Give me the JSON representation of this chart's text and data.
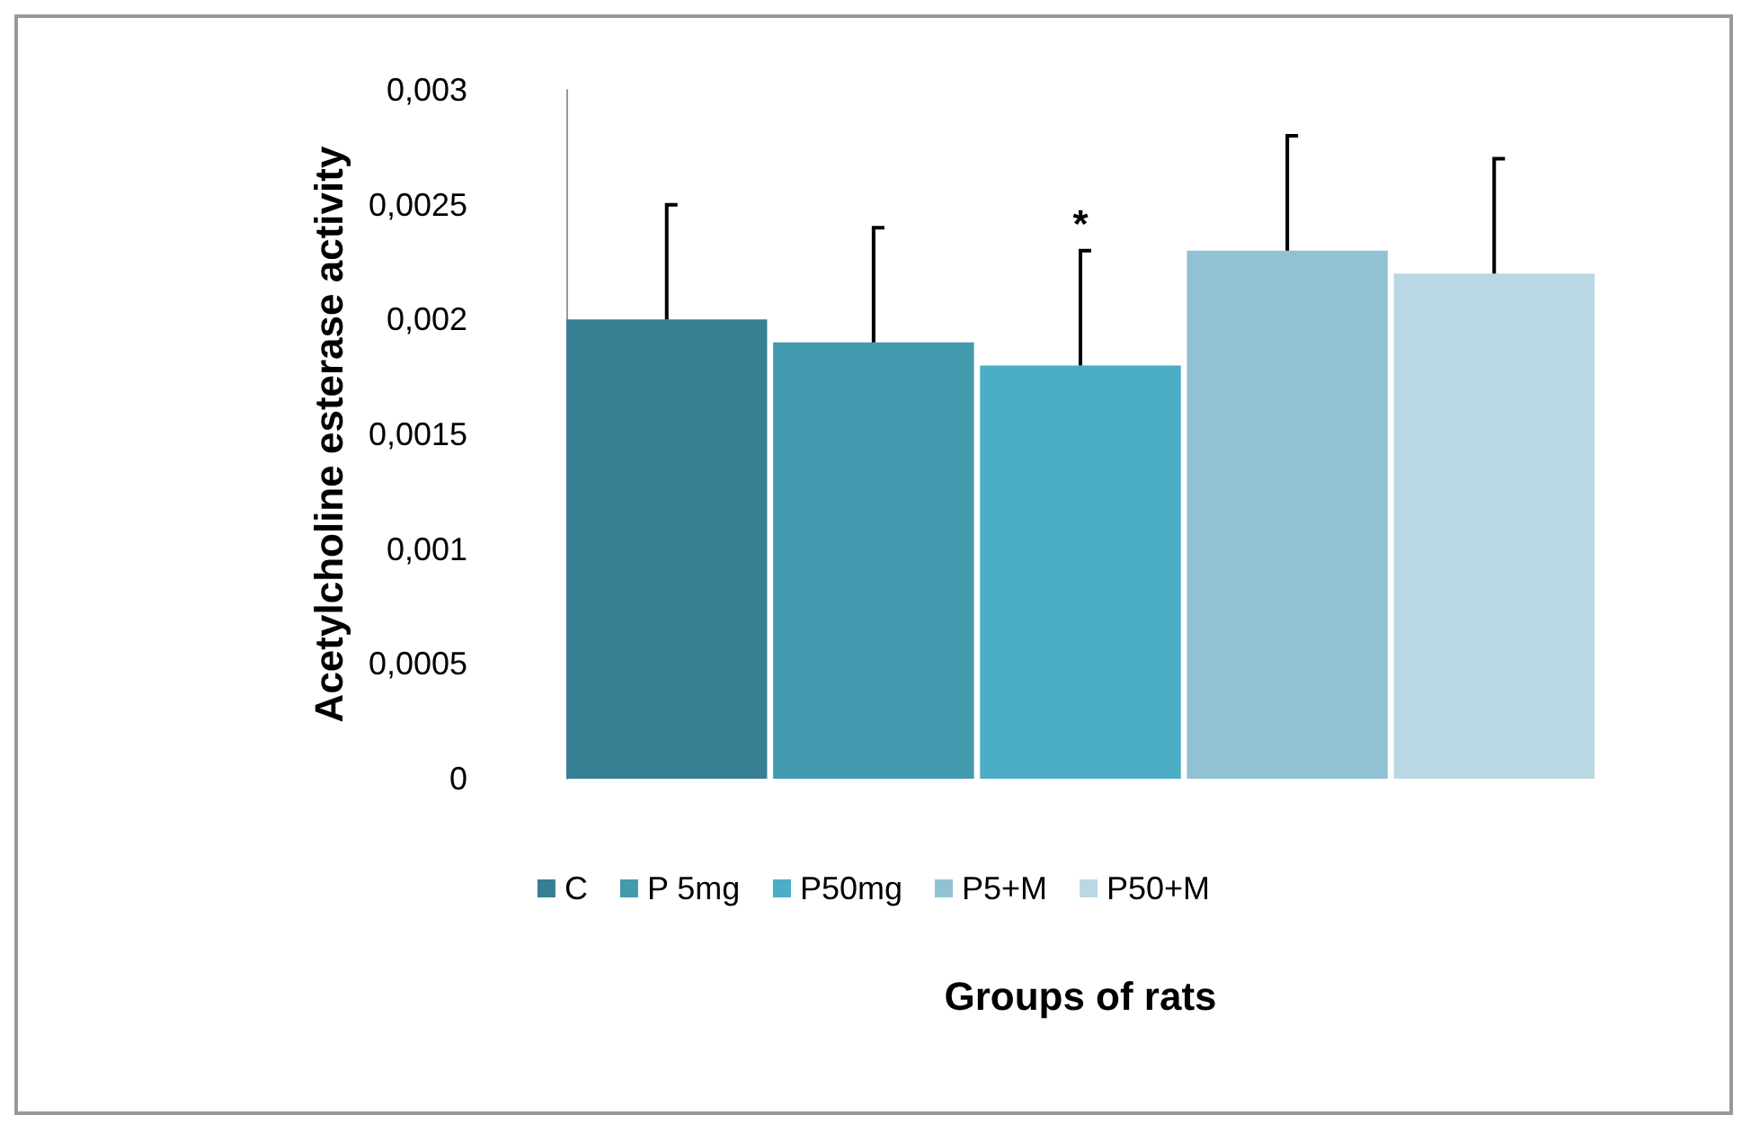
{
  "chart_data": {
    "type": "bar",
    "xlabel": "Groups of rats",
    "ylabel": "Acetylcholine esterase activity",
    "categories": [
      null
    ],
    "series": [
      {
        "name": "C",
        "color": "#367f93",
        "values": [
          0.002
        ],
        "errors": [
          [
            0.002,
            0.0025
          ]
        ]
      },
      {
        "name": "P 5mg",
        "color": "#4399ad",
        "values": [
          0.0019
        ],
        "errors": [
          [
            0.0019,
            0.0024
          ]
        ]
      },
      {
        "name": "P50mg",
        "color": "#4badc6",
        "values": [
          0.0018
        ],
        "errors": [
          [
            0.0018,
            0.0023
          ]
        ],
        "value_labels": [
          "*"
        ]
      },
      {
        "name": "P5+M",
        "color": "#93c1d4",
        "values": [
          0.0023
        ],
        "errors": [
          [
            0.0023,
            0.0028
          ]
        ]
      },
      {
        "name": "P50+M",
        "color": "#b9d8e3",
        "values": [
          0.0022
        ],
        "errors": [
          [
            0.0022,
            0.0027
          ]
        ]
      }
    ],
    "ylim": [
      0,
      0.003
    ],
    "yticks": [
      0,
      {
        "value": 0.0005,
        "label": "0,0005"
      },
      {
        "value": 0.001,
        "label": "0,001"
      },
      {
        "value": 0.0015,
        "label": "0,0015"
      },
      {
        "value": 0.002,
        "label": "0,002"
      },
      {
        "value": 0.0025,
        "label": "0,0025"
      },
      {
        "value": 0.003,
        "label": "0,003"
      }
    ],
    "tick_labels": "y",
    "legend": "bottom"
  }
}
